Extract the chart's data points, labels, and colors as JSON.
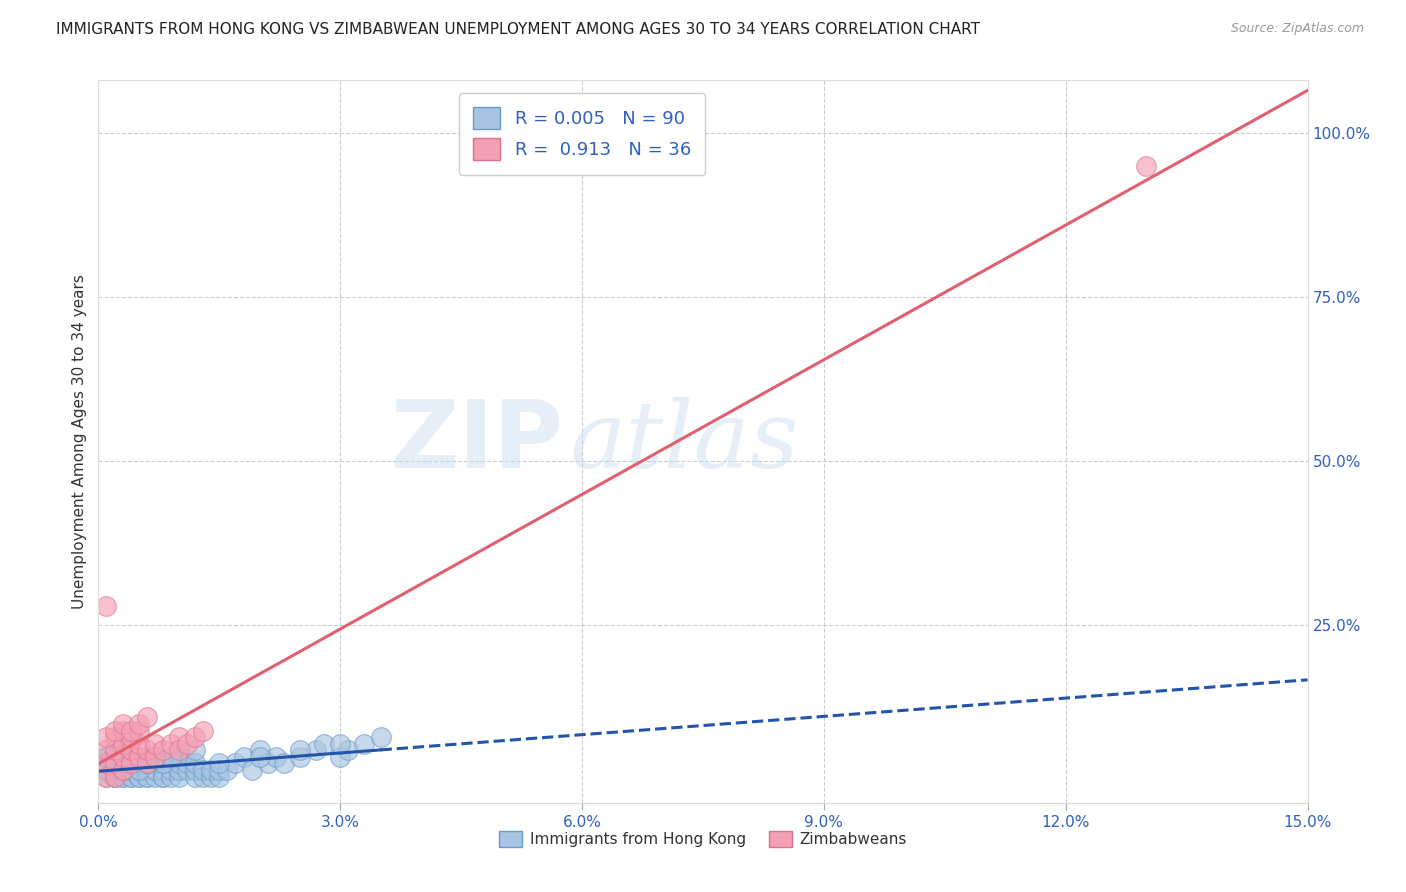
{
  "title": "IMMIGRANTS FROM HONG KONG VS ZIMBABWEAN UNEMPLOYMENT AMONG AGES 30 TO 34 YEARS CORRELATION CHART",
  "source_text": "Source: ZipAtlas.com",
  "ylabel": "Unemployment Among Ages 30 to 34 years",
  "xlim": [
    0.0,
    0.15
  ],
  "ylim": [
    -0.02,
    1.08
  ],
  "xticks": [
    0.0,
    0.03,
    0.06,
    0.09,
    0.12,
    0.15
  ],
  "xticklabels": [
    "0.0%",
    "3.0%",
    "6.0%",
    "9.0%",
    "12.0%",
    "15.0%"
  ],
  "yticks_right": [
    0.25,
    0.5,
    0.75,
    1.0
  ],
  "ytick_right_labels": [
    "25.0%",
    "50.0%",
    "75.0%",
    "100.0%"
  ],
  "hk_color": "#a8c4e0",
  "hk_edge_color": "#6699cc",
  "zim_color": "#f4a0b4",
  "zim_edge_color": "#e07090",
  "hk_line_color": "#2255aa",
  "zim_line_color": "#e06070",
  "hk_R": 0.005,
  "hk_N": 90,
  "zim_R": 0.913,
  "zim_N": 36,
  "watermark_zip": "ZIP",
  "watermark_atlas": "atlas",
  "background_color": "#ffffff",
  "grid_color": "#cccccc",
  "title_fontsize": 11,
  "hk_scatter_x": [
    0.001,
    0.001,
    0.001,
    0.001,
    0.002,
    0.002,
    0.002,
    0.002,
    0.002,
    0.002,
    0.003,
    0.003,
    0.003,
    0.003,
    0.003,
    0.003,
    0.003,
    0.004,
    0.004,
    0.004,
    0.004,
    0.004,
    0.004,
    0.005,
    0.005,
    0.005,
    0.005,
    0.005,
    0.006,
    0.006,
    0.006,
    0.006,
    0.006,
    0.007,
    0.007,
    0.007,
    0.007,
    0.008,
    0.008,
    0.008,
    0.008,
    0.009,
    0.009,
    0.009,
    0.01,
    0.01,
    0.01,
    0.01,
    0.011,
    0.011,
    0.012,
    0.012,
    0.012,
    0.013,
    0.013,
    0.014,
    0.014,
    0.015,
    0.015,
    0.016,
    0.017,
    0.018,
    0.019,
    0.02,
    0.021,
    0.022,
    0.023,
    0.025,
    0.027,
    0.028,
    0.03,
    0.031,
    0.033,
    0.035,
    0.001,
    0.002,
    0.003,
    0.004,
    0.005,
    0.006,
    0.007,
    0.008,
    0.009,
    0.012,
    0.015,
    0.02,
    0.025,
    0.03,
    0.001,
    0.002
  ],
  "hk_scatter_y": [
    0.02,
    0.03,
    0.04,
    0.05,
    0.02,
    0.03,
    0.04,
    0.05,
    0.02,
    0.03,
    0.02,
    0.03,
    0.04,
    0.05,
    0.02,
    0.03,
    0.04,
    0.02,
    0.03,
    0.04,
    0.05,
    0.02,
    0.03,
    0.02,
    0.03,
    0.04,
    0.05,
    0.02,
    0.02,
    0.03,
    0.04,
    0.05,
    0.02,
    0.03,
    0.04,
    0.02,
    0.03,
    0.02,
    0.03,
    0.04,
    0.02,
    0.02,
    0.03,
    0.04,
    0.02,
    0.03,
    0.04,
    0.05,
    0.03,
    0.04,
    0.02,
    0.03,
    0.04,
    0.02,
    0.03,
    0.02,
    0.03,
    0.02,
    0.03,
    0.03,
    0.04,
    0.05,
    0.03,
    0.06,
    0.04,
    0.05,
    0.04,
    0.05,
    0.06,
    0.07,
    0.05,
    0.06,
    0.07,
    0.08,
    0.03,
    0.04,
    0.03,
    0.04,
    0.03,
    0.04,
    0.05,
    0.04,
    0.05,
    0.06,
    0.04,
    0.05,
    0.06,
    0.07,
    0.05,
    0.06
  ],
  "zim_scatter_x": [
    0.001,
    0.001,
    0.001,
    0.002,
    0.002,
    0.002,
    0.002,
    0.003,
    0.003,
    0.003,
    0.003,
    0.004,
    0.004,
    0.004,
    0.005,
    0.005,
    0.005,
    0.006,
    0.006,
    0.007,
    0.007,
    0.008,
    0.009,
    0.01,
    0.01,
    0.011,
    0.012,
    0.013,
    0.001,
    0.002,
    0.003,
    0.004,
    0.005,
    0.006,
    0.001,
    0.13
  ],
  "zim_scatter_y": [
    0.02,
    0.04,
    0.06,
    0.02,
    0.04,
    0.06,
    0.08,
    0.03,
    0.05,
    0.07,
    0.09,
    0.04,
    0.06,
    0.08,
    0.05,
    0.07,
    0.09,
    0.04,
    0.06,
    0.05,
    0.07,
    0.06,
    0.07,
    0.08,
    0.06,
    0.07,
    0.08,
    0.09,
    0.08,
    0.09,
    0.1,
    0.09,
    0.1,
    0.11,
    0.28,
    0.95
  ],
  "hk_trend_solid_end": 0.035,
  "legend_hk_label": "Immigrants from Hong Kong",
  "legend_zim_label": "Zimbabweans"
}
